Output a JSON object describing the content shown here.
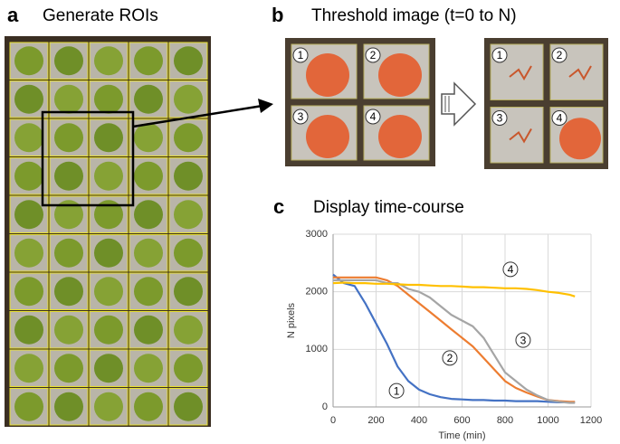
{
  "panels": {
    "a": {
      "label": "a",
      "title": "Generate ROIs"
    },
    "b": {
      "label": "b",
      "title": "Threshold image (t=0 to N)",
      "roi_labels": [
        "1",
        "2",
        "3",
        "4"
      ]
    },
    "c": {
      "label": "c",
      "title": "Display time-course"
    }
  },
  "chart_data": {
    "type": "line",
    "x_label": "Time (min)",
    "y_label": "N pixels",
    "x": [
      0,
      50,
      100,
      150,
      200,
      250,
      300,
      350,
      400,
      450,
      500,
      550,
      600,
      650,
      700,
      750,
      800,
      850,
      900,
      950,
      1000,
      1050,
      1100,
      1125
    ],
    "series": [
      {
        "name": "1",
        "color": "#4472c4",
        "values": [
          2300,
          2150,
          2100,
          1800,
          1450,
          1100,
          700,
          450,
          300,
          220,
          170,
          140,
          130,
          120,
          120,
          110,
          110,
          100,
          100,
          100,
          90,
          80,
          80,
          80
        ]
      },
      {
        "name": "2",
        "color": "#ed7d31",
        "values": [
          2250,
          2250,
          2250,
          2250,
          2250,
          2200,
          2100,
          1950,
          1800,
          1650,
          1500,
          1350,
          1200,
          1050,
          850,
          650,
          450,
          330,
          250,
          180,
          120,
          100,
          90,
          90
        ]
      },
      {
        "name": "3",
        "color": "#a5a5a5",
        "values": [
          2200,
          2200,
          2200,
          2200,
          2200,
          2150,
          2150,
          2050,
          2000,
          1900,
          1750,
          1600,
          1500,
          1400,
          1200,
          900,
          600,
          450,
          300,
          200,
          120,
          90,
          70,
          70
        ]
      },
      {
        "name": "4",
        "color": "#ffc000",
        "values": [
          2150,
          2160,
          2150,
          2150,
          2140,
          2140,
          2130,
          2120,
          2120,
          2110,
          2100,
          2100,
          2090,
          2080,
          2080,
          2070,
          2060,
          2060,
          2050,
          2030,
          2000,
          1980,
          1950,
          1920
        ]
      }
    ],
    "xlim": [
      0,
      1200
    ],
    "xticks": [
      0,
      200,
      400,
      600,
      800,
      1000,
      1200
    ],
    "ylim": [
      0,
      3000
    ],
    "yticks": [
      0,
      1000,
      2000,
      3000
    ],
    "grid": true
  }
}
